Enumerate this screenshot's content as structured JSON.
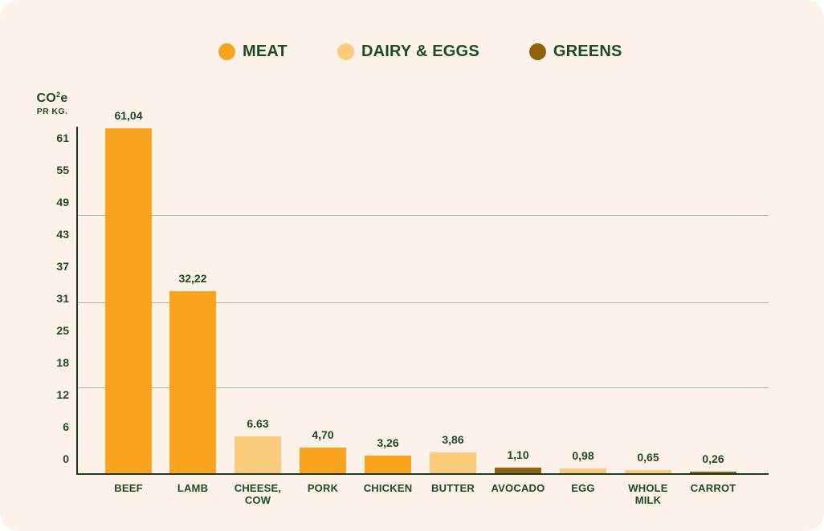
{
  "colors": {
    "card_bg": "#fcf2ea",
    "text_green": "#1d4a2b",
    "axis_green": "#1b3b23",
    "gridline": "#a6b3a0",
    "groups": {
      "meat": "#f8a41f",
      "dairy": "#facd7e",
      "greens": "#8f630d"
    }
  },
  "legend": {
    "items": [
      {
        "id": "meat",
        "label": "MEAT"
      },
      {
        "id": "dairy",
        "label": "DAIRY & EGGS"
      },
      {
        "id": "greens",
        "label": "GREENS"
      }
    ]
  },
  "chart_data": {
    "type": "bar",
    "title": "",
    "y_axis_title": {
      "pre": "CO",
      "sup": "2",
      "post": "e"
    },
    "y_axis_subtitle": "PR KG.",
    "y_ticks": [
      "0",
      "6",
      "12",
      "18",
      "25",
      "31",
      "37",
      "43",
      "49",
      "55",
      "61"
    ],
    "ylim": [
      0,
      61.04
    ],
    "grid": true,
    "legend_position": "top-center",
    "categories": [
      "BEEF",
      "LAMB",
      "CHEESE, COW",
      "PORK",
      "CHICKEN",
      "BUTTER",
      "AVOCADO",
      "EGG",
      "WHOLE MILK",
      "CARROT"
    ],
    "items": [
      {
        "slug": "beef",
        "lines": [
          "BEEF"
        ],
        "value": 61.04,
        "label": "61,04",
        "group": "meat"
      },
      {
        "slug": "lamb",
        "lines": [
          "LAMB"
        ],
        "value": 32.22,
        "label": "32,22",
        "group": "meat"
      },
      {
        "slug": "cheese-cow",
        "lines": [
          "CHEESE,",
          "COW"
        ],
        "value": 6.63,
        "label": "6.63",
        "group": "dairy"
      },
      {
        "slug": "pork",
        "lines": [
          "PORK"
        ],
        "value": 4.7,
        "label": "4,70",
        "group": "meat"
      },
      {
        "slug": "chicken",
        "lines": [
          "CHICKEN"
        ],
        "value": 3.26,
        "label": "3,26",
        "group": "meat"
      },
      {
        "slug": "butter",
        "lines": [
          "BUTTER"
        ],
        "value": 3.86,
        "label": "3,86",
        "group": "dairy"
      },
      {
        "slug": "avocado",
        "lines": [
          "AVOCADO"
        ],
        "value": 1.1,
        "label": "1,10",
        "group": "greens"
      },
      {
        "slug": "egg",
        "lines": [
          "EGG"
        ],
        "value": 0.98,
        "label": "0,98",
        "group": "dairy"
      },
      {
        "slug": "whole-milk",
        "lines": [
          "WHOLE",
          "MILK"
        ],
        "value": 0.65,
        "label": "0,65",
        "group": "dairy"
      },
      {
        "slug": "carrot",
        "lines": [
          "CARROT"
        ],
        "value": 0.26,
        "label": "0,26",
        "group": "greens"
      }
    ]
  }
}
